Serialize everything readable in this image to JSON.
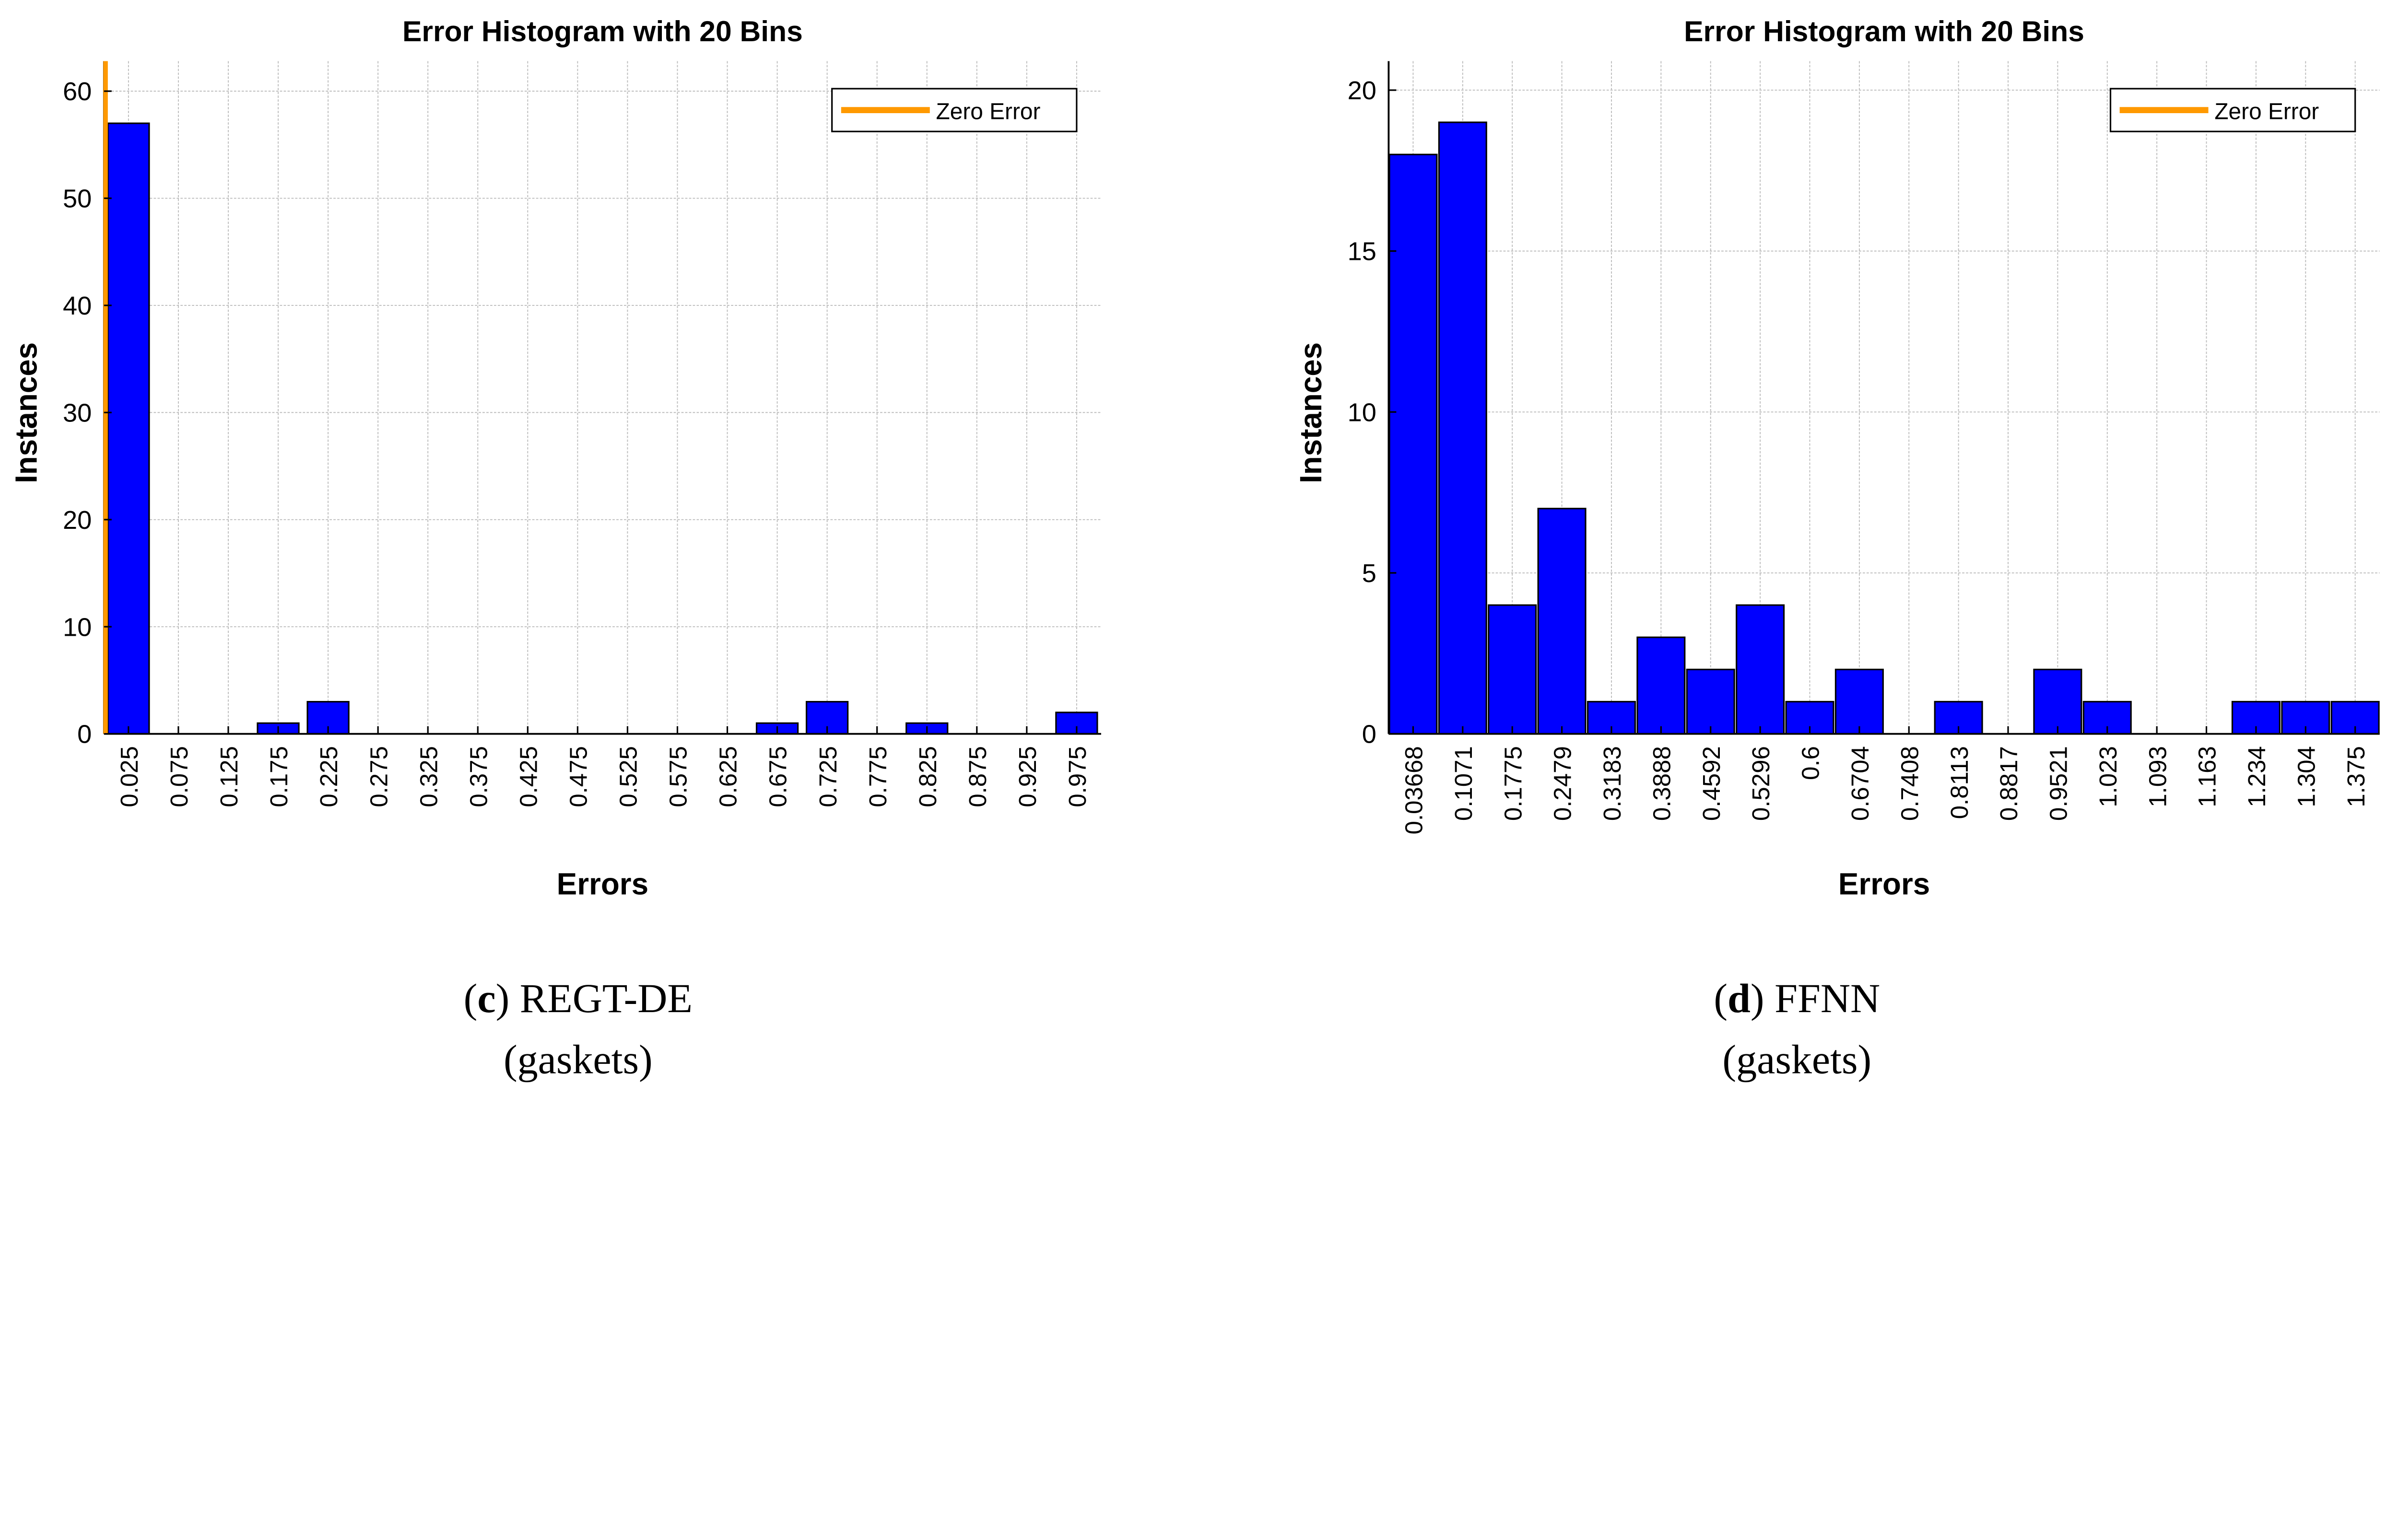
{
  "colors": {
    "bar": "#0000ff",
    "bar_edge": "#000000",
    "zero_line": "#ff9900",
    "grid": "#bdbdbd"
  },
  "chart_data": [
    {
      "type": "bar",
      "title": "Error Histogram with 20 Bins",
      "xlabel": "Errors",
      "ylabel": "Instances",
      "categories": [
        "0.025",
        "0.075",
        "0.125",
        "0.175",
        "0.225",
        "0.275",
        "0.325",
        "0.375",
        "0.425",
        "0.475",
        "0.525",
        "0.575",
        "0.625",
        "0.675",
        "0.725",
        "0.775",
        "0.825",
        "0.875",
        "0.925",
        "0.975"
      ],
      "values": [
        57,
        0,
        0,
        1,
        3,
        0,
        0,
        0,
        0,
        0,
        0,
        0,
        0,
        1,
        3,
        0,
        1,
        0,
        0,
        2
      ],
      "yticks": [
        0,
        10,
        20,
        30,
        40,
        50,
        60
      ],
      "ylim": [
        0,
        62.8
      ],
      "grid": true,
      "legend": {
        "entries": [
          "Zero Error"
        ],
        "placement": "top-right"
      },
      "zero_error_line_visible": true,
      "caption": {
        "letter": "c",
        "method": "REGT-DE",
        "dataset": "(gaskets)"
      }
    },
    {
      "type": "bar",
      "title": "Error Histogram with 20 Bins",
      "xlabel": "Errors",
      "ylabel": "Instances",
      "categories": [
        "0.03668",
        "0.1071",
        "0.1775",
        "0.2479",
        "0.3183",
        "0.3888",
        "0.4592",
        "0.5296",
        "0.6",
        "0.6704",
        "0.7408",
        "0.8113",
        "0.8817",
        "0.9521",
        "1.023",
        "1.093",
        "1.163",
        "1.234",
        "1.304",
        "1.375"
      ],
      "values": [
        18,
        19,
        4,
        7,
        1,
        3,
        2,
        4,
        1,
        2,
        0,
        1,
        0,
        2,
        1,
        0,
        0,
        1,
        1,
        1
      ],
      "yticks": [
        0,
        5,
        10,
        15,
        20
      ],
      "ylim": [
        0,
        20.9
      ],
      "grid": true,
      "legend": {
        "entries": [
          "Zero Error"
        ],
        "placement": "top-right"
      },
      "zero_error_line_visible": false,
      "caption": {
        "letter": "d",
        "method": "FFNN",
        "dataset": "(gaskets)"
      }
    }
  ]
}
